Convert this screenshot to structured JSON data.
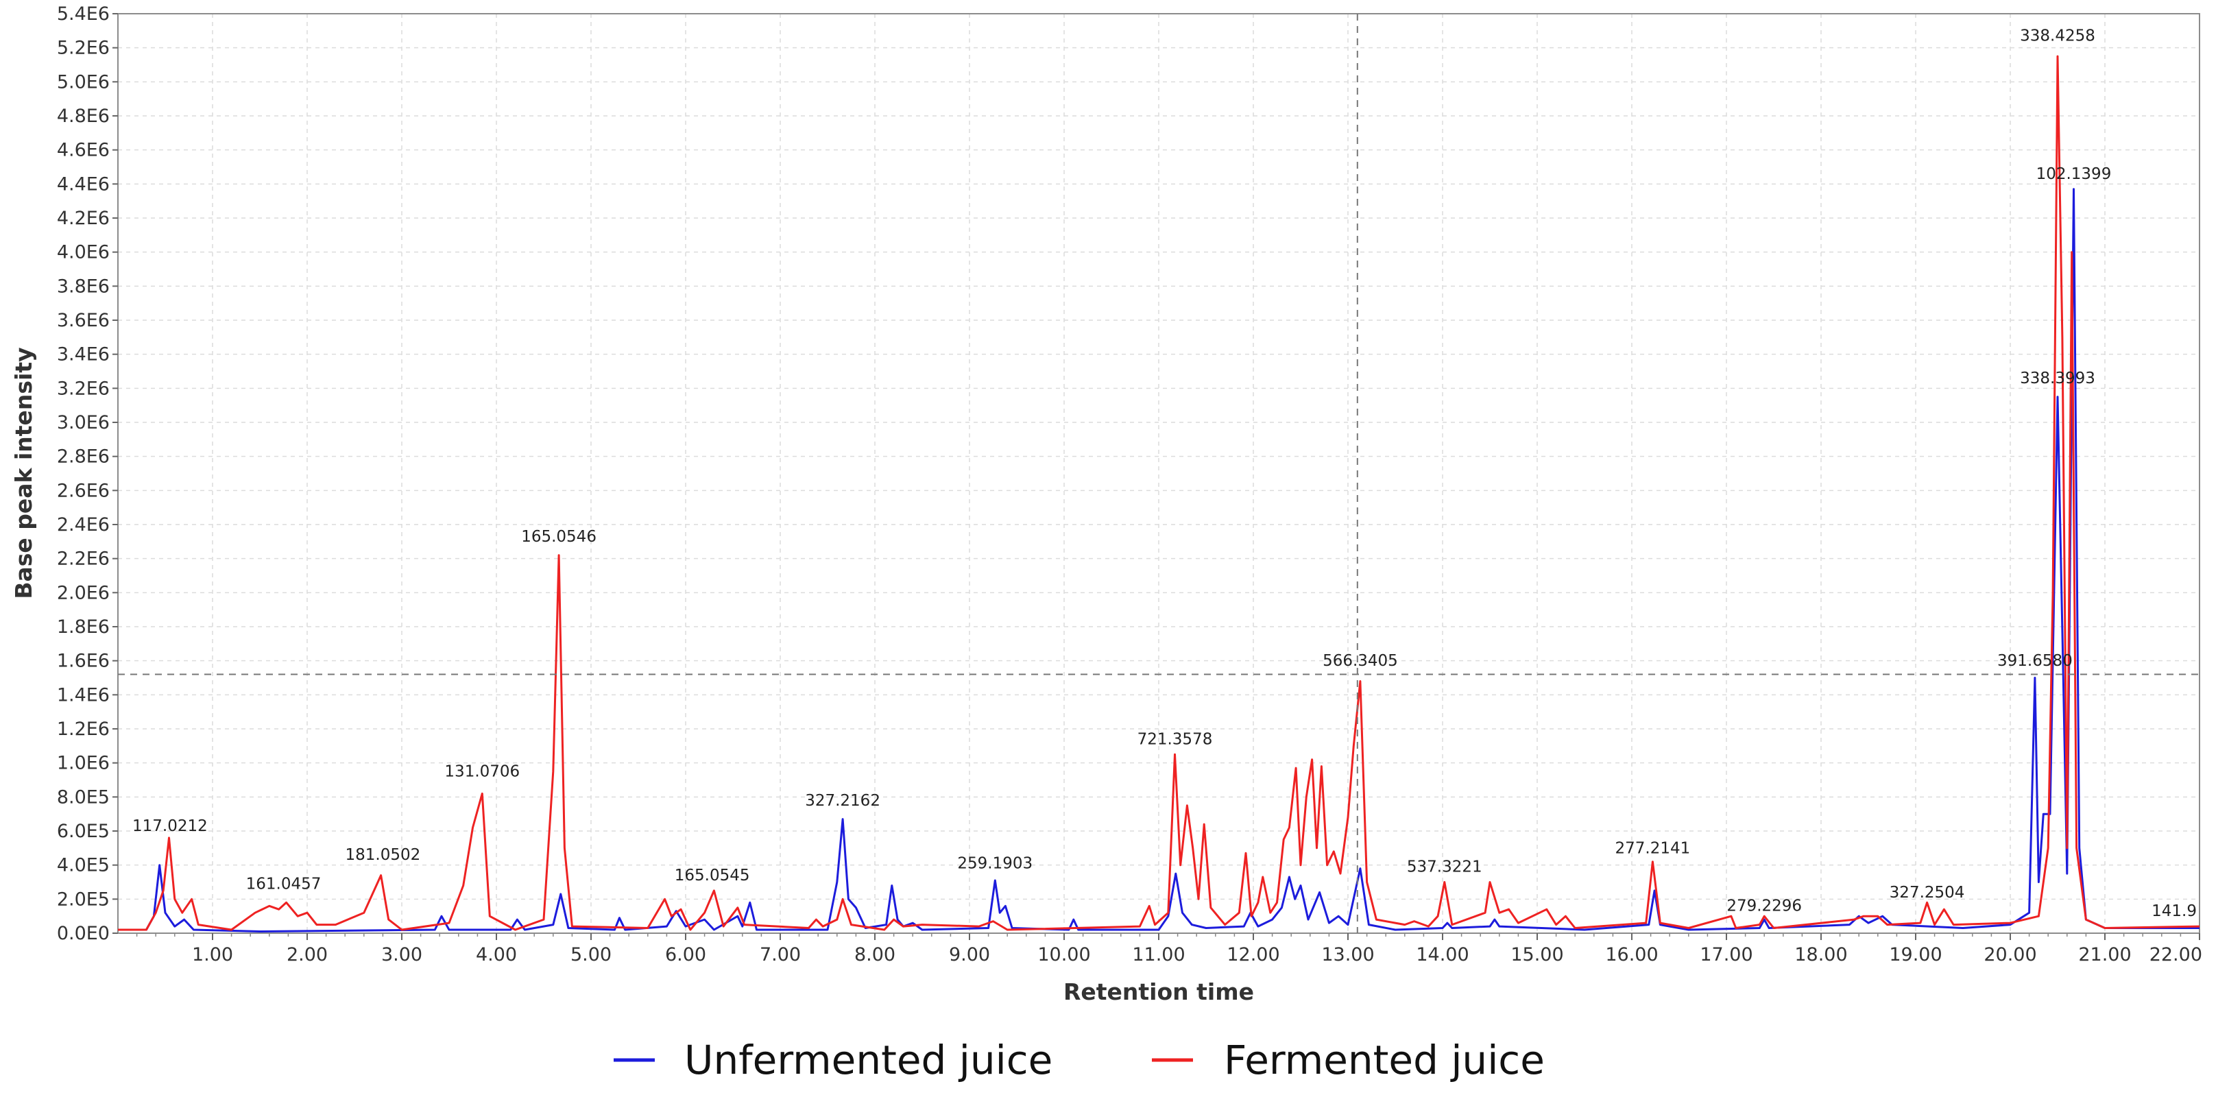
{
  "chart_data": {
    "type": "line",
    "title": "",
    "xlabel": "Retention time",
    "ylabel": "Base peak intensity",
    "xlim": [
      0,
      22.0
    ],
    "ylim": [
      0,
      5.4
    ],
    "y_unit_note": "values in units of 1E6",
    "grid": true,
    "legend_position": "bottom-center",
    "x_ticks": [
      "1.00",
      "2.00",
      "3.00",
      "4.00",
      "5.00",
      "6.00",
      "7.00",
      "8.00",
      "9.00",
      "10.00",
      "11.00",
      "12.00",
      "13.00",
      "14.00",
      "15.00",
      "16.00",
      "17.00",
      "18.00",
      "19.00",
      "20.00",
      "21.00",
      "22.00"
    ],
    "y_ticks": [
      "0.0E0",
      "2.0E5",
      "4.0E5",
      "6.0E5",
      "8.0E5",
      "1.0E6",
      "1.2E6",
      "1.4E6",
      "1.6E6",
      "1.8E6",
      "2.0E6",
      "2.2E6",
      "2.4E6",
      "2.6E6",
      "2.8E6",
      "3.0E6",
      "3.2E6",
      "3.4E6",
      "3.6E6",
      "3.8E6",
      "4.0E6",
      "4.2E6",
      "4.4E6",
      "4.6E6",
      "4.8E6",
      "5.0E6",
      "5.2E6",
      "5.4E6"
    ],
    "crosshair": {
      "x": 13.1,
      "y": 1.52
    },
    "series": [
      {
        "name": "Unfermented juice",
        "color": "#1c1cdc",
        "points": [
          [
            0.0,
            0.02
          ],
          [
            0.3,
            0.02
          ],
          [
            0.38,
            0.1
          ],
          [
            0.44,
            0.4
          ],
          [
            0.5,
            0.12
          ],
          [
            0.6,
            0.04
          ],
          [
            0.7,
            0.08
          ],
          [
            0.8,
            0.02
          ],
          [
            1.5,
            0.01
          ],
          [
            3.35,
            0.02
          ],
          [
            3.42,
            0.1
          ],
          [
            3.5,
            0.02
          ],
          [
            4.15,
            0.02
          ],
          [
            4.22,
            0.08
          ],
          [
            4.3,
            0.02
          ],
          [
            4.6,
            0.05
          ],
          [
            4.68,
            0.23
          ],
          [
            4.76,
            0.03
          ],
          [
            5.25,
            0.02
          ],
          [
            5.3,
            0.09
          ],
          [
            5.36,
            0.02
          ],
          [
            5.8,
            0.04
          ],
          [
            5.9,
            0.13
          ],
          [
            6.0,
            0.04
          ],
          [
            6.2,
            0.08
          ],
          [
            6.3,
            0.02
          ],
          [
            6.55,
            0.1
          ],
          [
            6.6,
            0.04
          ],
          [
            6.68,
            0.18
          ],
          [
            6.75,
            0.02
          ],
          [
            7.5,
            0.02
          ],
          [
            7.6,
            0.3
          ],
          [
            7.66,
            0.67
          ],
          [
            7.72,
            0.2
          ],
          [
            7.8,
            0.15
          ],
          [
            7.9,
            0.03
          ],
          [
            8.12,
            0.05
          ],
          [
            8.18,
            0.28
          ],
          [
            8.24,
            0.08
          ],
          [
            8.3,
            0.04
          ],
          [
            8.4,
            0.06
          ],
          [
            8.5,
            0.02
          ],
          [
            9.2,
            0.03
          ],
          [
            9.27,
            0.31
          ],
          [
            9.32,
            0.12
          ],
          [
            9.38,
            0.16
          ],
          [
            9.45,
            0.03
          ],
          [
            10.05,
            0.02
          ],
          [
            10.1,
            0.08
          ],
          [
            10.15,
            0.02
          ],
          [
            11.0,
            0.02
          ],
          [
            11.1,
            0.1
          ],
          [
            11.18,
            0.35
          ],
          [
            11.25,
            0.12
          ],
          [
            11.35,
            0.05
          ],
          [
            11.5,
            0.03
          ],
          [
            11.9,
            0.04
          ],
          [
            11.97,
            0.12
          ],
          [
            12.05,
            0.04
          ],
          [
            12.2,
            0.08
          ],
          [
            12.3,
            0.15
          ],
          [
            12.38,
            0.33
          ],
          [
            12.44,
            0.2
          ],
          [
            12.5,
            0.28
          ],
          [
            12.58,
            0.08
          ],
          [
            12.7,
            0.24
          ],
          [
            12.8,
            0.06
          ],
          [
            12.9,
            0.1
          ],
          [
            13.0,
            0.05
          ],
          [
            13.13,
            0.38
          ],
          [
            13.22,
            0.05
          ],
          [
            13.5,
            0.02
          ],
          [
            14.0,
            0.03
          ],
          [
            14.05,
            0.06
          ],
          [
            14.1,
            0.03
          ],
          [
            14.5,
            0.04
          ],
          [
            14.55,
            0.08
          ],
          [
            14.6,
            0.04
          ],
          [
            15.5,
            0.02
          ],
          [
            16.18,
            0.05
          ],
          [
            16.24,
            0.25
          ],
          [
            16.3,
            0.05
          ],
          [
            16.6,
            0.02
          ],
          [
            17.35,
            0.03
          ],
          [
            17.4,
            0.08
          ],
          [
            17.45,
            0.03
          ],
          [
            18.3,
            0.05
          ],
          [
            18.4,
            0.1
          ],
          [
            18.5,
            0.06
          ],
          [
            18.65,
            0.1
          ],
          [
            18.75,
            0.05
          ],
          [
            19.5,
            0.03
          ],
          [
            20.0,
            0.05
          ],
          [
            20.2,
            0.12
          ],
          [
            20.26,
            1.5
          ],
          [
            20.3,
            0.3
          ],
          [
            20.35,
            0.7
          ],
          [
            20.42,
            0.7
          ],
          [
            20.5,
            3.15
          ],
          [
            20.56,
            1.5
          ],
          [
            20.6,
            0.35
          ],
          [
            20.67,
            4.37
          ],
          [
            20.73,
            0.5
          ],
          [
            20.8,
            0.08
          ],
          [
            21.0,
            0.03
          ],
          [
            22.0,
            0.03
          ]
        ]
      },
      {
        "name": "Fermented juice",
        "color": "#ee2222",
        "points": [
          [
            0.0,
            0.02
          ],
          [
            0.3,
            0.02
          ],
          [
            0.4,
            0.12
          ],
          [
            0.48,
            0.25
          ],
          [
            0.54,
            0.56
          ],
          [
            0.6,
            0.2
          ],
          [
            0.68,
            0.12
          ],
          [
            0.78,
            0.2
          ],
          [
            0.85,
            0.05
          ],
          [
            1.2,
            0.02
          ],
          [
            1.45,
            0.12
          ],
          [
            1.6,
            0.16
          ],
          [
            1.7,
            0.14
          ],
          [
            1.78,
            0.18
          ],
          [
            1.9,
            0.1
          ],
          [
            2.0,
            0.12
          ],
          [
            2.1,
            0.05
          ],
          [
            2.3,
            0.05
          ],
          [
            2.6,
            0.12
          ],
          [
            2.78,
            0.34
          ],
          [
            2.86,
            0.08
          ],
          [
            3.0,
            0.02
          ],
          [
            3.5,
            0.06
          ],
          [
            3.65,
            0.28
          ],
          [
            3.75,
            0.62
          ],
          [
            3.85,
            0.82
          ],
          [
            3.93,
            0.1
          ],
          [
            4.2,
            0.02
          ],
          [
            4.5,
            0.08
          ],
          [
            4.6,
            0.95
          ],
          [
            4.66,
            2.22
          ],
          [
            4.72,
            0.5
          ],
          [
            4.8,
            0.04
          ],
          [
            5.6,
            0.03
          ],
          [
            5.78,
            0.2
          ],
          [
            5.85,
            0.1
          ],
          [
            5.95,
            0.14
          ],
          [
            6.05,
            0.02
          ],
          [
            6.2,
            0.12
          ],
          [
            6.3,
            0.25
          ],
          [
            6.4,
            0.04
          ],
          [
            6.55,
            0.15
          ],
          [
            6.62,
            0.05
          ],
          [
            7.3,
            0.03
          ],
          [
            7.38,
            0.08
          ],
          [
            7.45,
            0.04
          ],
          [
            7.6,
            0.08
          ],
          [
            7.66,
            0.2
          ],
          [
            7.75,
            0.05
          ],
          [
            8.1,
            0.02
          ],
          [
            8.2,
            0.08
          ],
          [
            8.3,
            0.04
          ],
          [
            8.5,
            0.05
          ],
          [
            9.1,
            0.04
          ],
          [
            9.25,
            0.07
          ],
          [
            9.4,
            0.02
          ],
          [
            10.8,
            0.04
          ],
          [
            10.9,
            0.16
          ],
          [
            10.96,
            0.05
          ],
          [
            11.1,
            0.12
          ],
          [
            11.17,
            1.05
          ],
          [
            11.23,
            0.4
          ],
          [
            11.3,
            0.75
          ],
          [
            11.36,
            0.5
          ],
          [
            11.42,
            0.2
          ],
          [
            11.48,
            0.64
          ],
          [
            11.55,
            0.15
          ],
          [
            11.7,
            0.05
          ],
          [
            11.85,
            0.12
          ],
          [
            11.92,
            0.47
          ],
          [
            11.98,
            0.1
          ],
          [
            12.05,
            0.18
          ],
          [
            12.1,
            0.33
          ],
          [
            12.18,
            0.12
          ],
          [
            12.25,
            0.18
          ],
          [
            12.32,
            0.55
          ],
          [
            12.38,
            0.62
          ],
          [
            12.45,
            0.97
          ],
          [
            12.5,
            0.4
          ],
          [
            12.56,
            0.8
          ],
          [
            12.62,
            1.02
          ],
          [
            12.67,
            0.5
          ],
          [
            12.72,
            0.98
          ],
          [
            12.78,
            0.4
          ],
          [
            12.85,
            0.48
          ],
          [
            12.92,
            0.35
          ],
          [
            13.0,
            0.68
          ],
          [
            13.06,
            1.1
          ],
          [
            13.13,
            1.48
          ],
          [
            13.2,
            0.3
          ],
          [
            13.3,
            0.08
          ],
          [
            13.6,
            0.05
          ],
          [
            13.7,
            0.07
          ],
          [
            13.85,
            0.04
          ],
          [
            13.95,
            0.1
          ],
          [
            14.02,
            0.3
          ],
          [
            14.1,
            0.05
          ],
          [
            14.45,
            0.12
          ],
          [
            14.5,
            0.3
          ],
          [
            14.6,
            0.12
          ],
          [
            14.7,
            0.14
          ],
          [
            14.8,
            0.06
          ],
          [
            15.1,
            0.14
          ],
          [
            15.2,
            0.05
          ],
          [
            15.3,
            0.1
          ],
          [
            15.4,
            0.03
          ],
          [
            16.15,
            0.06
          ],
          [
            16.22,
            0.42
          ],
          [
            16.3,
            0.06
          ],
          [
            16.6,
            0.03
          ],
          [
            17.05,
            0.1
          ],
          [
            17.1,
            0.03
          ],
          [
            17.35,
            0.05
          ],
          [
            17.4,
            0.1
          ],
          [
            17.5,
            0.03
          ],
          [
            18.35,
            0.08
          ],
          [
            18.45,
            0.1
          ],
          [
            18.6,
            0.1
          ],
          [
            18.7,
            0.05
          ],
          [
            19.05,
            0.06
          ],
          [
            19.12,
            0.18
          ],
          [
            19.2,
            0.05
          ],
          [
            19.3,
            0.14
          ],
          [
            19.4,
            0.05
          ],
          [
            20.0,
            0.06
          ],
          [
            20.3,
            0.1
          ],
          [
            20.4,
            0.5
          ],
          [
            20.45,
            2.0
          ],
          [
            20.5,
            5.15
          ],
          [
            20.55,
            3.5
          ],
          [
            20.6,
            0.5
          ],
          [
            20.65,
            4.0
          ],
          [
            20.7,
            0.5
          ],
          [
            20.8,
            0.08
          ],
          [
            21.0,
            0.03
          ],
          [
            22.0,
            0.04
          ]
        ]
      }
    ],
    "peak_labels": [
      {
        "text": "117.0212",
        "x": 0.55,
        "y": 0.6
      },
      {
        "text": "161.0457",
        "x": 1.75,
        "y": 0.26
      },
      {
        "text": "181.0502",
        "x": 2.8,
        "y": 0.43
      },
      {
        "text": "131.0706",
        "x": 3.85,
        "y": 0.92
      },
      {
        "text": "165.0546",
        "x": 4.66,
        "y": 2.3
      },
      {
        "text": "165.0545",
        "x": 6.28,
        "y": 0.31
      },
      {
        "text": "327.2162",
        "x": 7.66,
        "y": 0.75
      },
      {
        "text": "259.1903",
        "x": 9.27,
        "y": 0.38
      },
      {
        "text": "721.3578",
        "x": 11.17,
        "y": 1.11
      },
      {
        "text": "566.3405",
        "x": 13.13,
        "y": 1.57
      },
      {
        "text": "537.3221",
        "x": 14.02,
        "y": 0.36
      },
      {
        "text": "277.2141",
        "x": 16.22,
        "y": 0.47
      },
      {
        "text": "279.2296",
        "x": 17.4,
        "y": 0.13
      },
      {
        "text": "327.2504",
        "x": 19.12,
        "y": 0.21
      },
      {
        "text": "391.6580",
        "x": 20.26,
        "y": 1.57
      },
      {
        "text": "338.3993",
        "x": 20.5,
        "y": 3.23
      },
      {
        "text": "338.4258",
        "x": 20.5,
        "y": 5.24
      },
      {
        "text": "102.1399",
        "x": 20.67,
        "y": 4.43
      },
      {
        "text": "141.9",
        "x": 21.9,
        "y": 0.1
      }
    ],
    "legend": [
      {
        "label": "Unfermented juice",
        "color": "#1c1cdc"
      },
      {
        "label": "Fermented juice",
        "color": "#ee2222"
      }
    ]
  }
}
